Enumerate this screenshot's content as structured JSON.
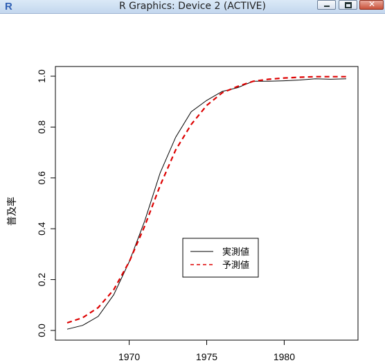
{
  "window": {
    "title": "R Graphics: Device 2 (ACTIVE)",
    "app_icon": "r-logo-icon",
    "controls": [
      "minimize-icon",
      "maximize-icon",
      "close-icon"
    ]
  },
  "chart_data": {
    "type": "line",
    "title": "",
    "xlabel": "",
    "ylabel": "普及率",
    "xlim": [
      1966,
      1984
    ],
    "ylim": [
      0,
      1
    ],
    "x_ticks": [
      1970,
      1975,
      1980
    ],
    "x_tick_labels": [
      "1970",
      "1975",
      "1980"
    ],
    "y_ticks": [
      0,
      0.2,
      0.4,
      0.6,
      0.8,
      1
    ],
    "y_tick_labels": [
      "0.0",
      "0.2",
      "0.4",
      "0.6",
      "0.8",
      "1.0"
    ],
    "grid": false,
    "legend_position": "center-right",
    "x": [
      1966,
      1967,
      1968,
      1969,
      1970,
      1971,
      1972,
      1973,
      1974,
      1975,
      1976,
      1977,
      1978,
      1979,
      1980,
      1981,
      1982,
      1983,
      1984
    ],
    "series": [
      {
        "name": "実測値",
        "color": "#000000",
        "style": "solid",
        "values": [
          0.005,
          0.02,
          0.055,
          0.14,
          0.27,
          0.43,
          0.62,
          0.76,
          0.86,
          0.905,
          0.94,
          0.955,
          0.98,
          0.98,
          0.982,
          0.985,
          0.99,
          0.988,
          0.99
        ]
      },
      {
        "name": "予測値",
        "color": "#dd0000",
        "style": "dashed",
        "values": [
          0.03,
          0.05,
          0.09,
          0.16,
          0.27,
          0.41,
          0.57,
          0.71,
          0.81,
          0.885,
          0.935,
          0.96,
          0.98,
          0.988,
          0.993,
          0.996,
          0.998,
          0.998,
          0.998
        ]
      }
    ]
  }
}
